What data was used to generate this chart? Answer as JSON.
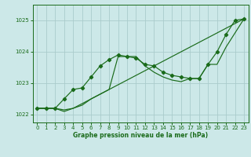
{
  "xlabel": "Graphe pression niveau de la mer (hPa)",
  "background_color": "#cce8e8",
  "grid_color": "#aacccc",
  "line_color": "#1a6b1a",
  "xlim": [
    -0.5,
    23.5
  ],
  "ylim": [
    1021.75,
    1025.5
  ],
  "xticks": [
    0,
    1,
    2,
    3,
    4,
    5,
    6,
    7,
    8,
    9,
    10,
    11,
    12,
    13,
    14,
    15,
    16,
    17,
    18,
    19,
    20,
    21,
    22,
    23
  ],
  "yticks": [
    1022,
    1023,
    1024,
    1025
  ],
  "series": [
    {
      "x": [
        0,
        1,
        2,
        3,
        4,
        5,
        6,
        7,
        8,
        9,
        10,
        11,
        12,
        13,
        14,
        15,
        16,
        17,
        18,
        19,
        20,
        21,
        22,
        23
      ],
      "y": [
        1022.2,
        1022.2,
        1022.2,
        1022.5,
        1022.8,
        1022.85,
        1023.2,
        1023.55,
        1023.75,
        1023.9,
        1023.85,
        1023.8,
        1023.6,
        1023.55,
        1023.35,
        1023.25,
        1023.2,
        1023.15,
        1023.15,
        1023.6,
        1024.0,
        1024.55,
        1025.0,
        1025.05
      ],
      "marker": true
    },
    {
      "x": [
        0,
        1,
        2,
        3,
        4,
        23
      ],
      "y": [
        1022.2,
        1022.2,
        1022.2,
        1022.1,
        1022.2,
        1025.05
      ],
      "marker": false
    },
    {
      "x": [
        0,
        1,
        2,
        3,
        4,
        5,
        6,
        7,
        8,
        9,
        10,
        11,
        12,
        13,
        14,
        15,
        16,
        17,
        18,
        19,
        20,
        21,
        22,
        23
      ],
      "y": [
        1022.2,
        1022.2,
        1022.2,
        1022.15,
        1022.2,
        1022.3,
        1022.5,
        1022.65,
        1022.8,
        1023.85,
        1023.85,
        1023.85,
        1023.55,
        1023.35,
        1023.2,
        1023.1,
        1023.05,
        1023.15,
        1023.15,
        1023.6,
        1023.6,
        1024.15,
        1024.6,
        1025.05
      ],
      "marker": false
    }
  ]
}
